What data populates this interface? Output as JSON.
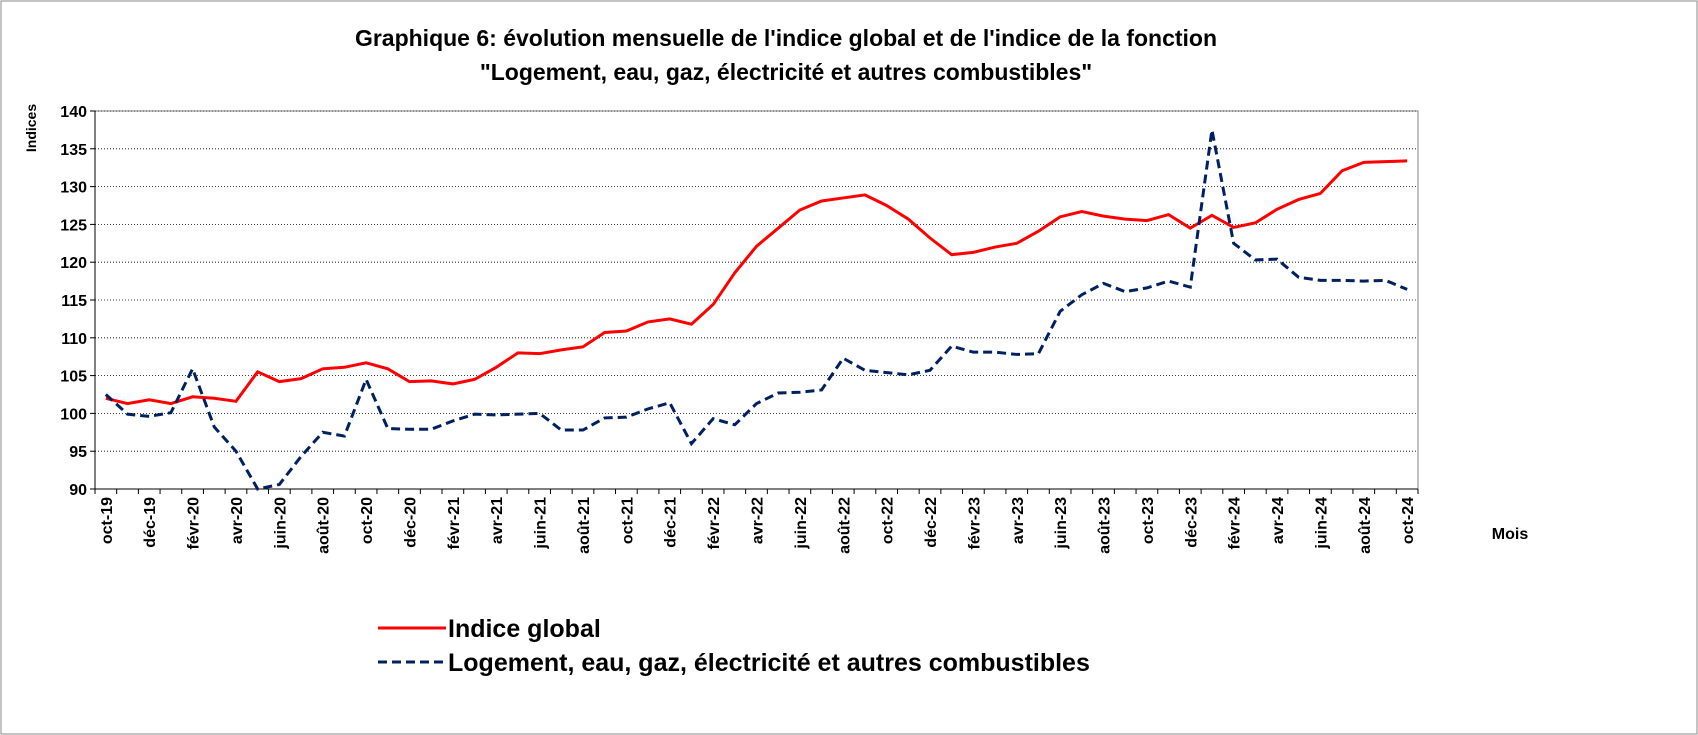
{
  "chart_data": {
    "type": "line",
    "title": "Graphique 6: évolution mensuelle de l'indice global et de l'indice de la fonction",
    "subtitle": "\"Logement, eau, gaz, électricité et autres combustibles\"",
    "y_label": "Indices",
    "x_label": "Mois",
    "categories": [
      "oct-19",
      null,
      "déc-19",
      null,
      "févr-20",
      null,
      "avr-20",
      null,
      "juin-20",
      null,
      "août-20",
      null,
      "oct-20",
      null,
      "déc-20",
      null,
      "févr-21",
      null,
      "avr-21",
      null,
      "juin-21",
      null,
      "août-21",
      null,
      "oct-21",
      null,
      "déc-21",
      null,
      "févr-22",
      null,
      "avr-22",
      null,
      "juin-22",
      null,
      "août-22",
      null,
      "oct-22",
      null,
      "déc-22",
      null,
      "févr-23",
      null,
      "avr-23",
      null,
      "juin-23",
      null,
      "août-23",
      null,
      "oct-23",
      null,
      "déc-23",
      null,
      "févr-24",
      null,
      "avr-24",
      null,
      "juin-24",
      null,
      "août-24",
      null,
      "oct-24"
    ],
    "series": [
      {
        "name": "Indice global",
        "color": "#ff0000",
        "dash": false,
        "values": [
          102.0,
          101.3,
          101.8,
          101.3,
          102.2,
          102.0,
          101.6,
          105.5,
          104.2,
          104.6,
          105.9,
          106.1,
          106.7,
          105.9,
          104.2,
          104.3,
          103.9,
          104.5,
          106.1,
          108.0,
          107.9,
          108.4,
          108.8,
          110.7,
          110.9,
          112.1,
          112.5,
          111.8,
          114.4,
          118.6,
          122.1,
          124.5,
          126.9,
          128.1,
          128.5,
          128.9,
          127.5,
          125.7,
          123.2,
          121.0,
          121.3,
          122.0,
          122.5,
          124.1,
          126.0,
          126.7,
          126.1,
          125.7,
          125.5,
          126.3,
          124.5,
          126.2,
          124.6,
          125.2,
          127.0,
          128.3,
          129.1,
          132.1,
          133.2,
          133.3,
          133.4
        ]
      },
      {
        "name": "Logement, eau, gaz, électricité et autres combustibles",
        "color": "#002060",
        "dash": true,
        "values": [
          102.5,
          99.9,
          99.6,
          100.1,
          105.9,
          98.2,
          95.0,
          90.0,
          90.6,
          94.3,
          97.5,
          97.0,
          104.5,
          98.0,
          97.9,
          97.9,
          99.0,
          99.9,
          99.8,
          99.9,
          100.0,
          97.8,
          97.8,
          99.4,
          99.5,
          100.6,
          101.4,
          96.0,
          99.3,
          98.5,
          101.3,
          102.7,
          102.8,
          103.1,
          107.3,
          105.7,
          105.4,
          105.1,
          105.7,
          108.9,
          108.1,
          108.1,
          107.8,
          107.9,
          113.5,
          115.7,
          117.2,
          116.1,
          116.6,
          117.5,
          116.7,
          137.5,
          122.5,
          120.3,
          120.4,
          118.0,
          117.6,
          117.6,
          117.5,
          117.6,
          116.4
        ]
      }
    ],
    "ylim": [
      90,
      140
    ],
    "yticks": [
      90,
      95,
      100,
      105,
      110,
      115,
      120,
      125,
      130,
      135,
      140
    ],
    "grid": true
  }
}
